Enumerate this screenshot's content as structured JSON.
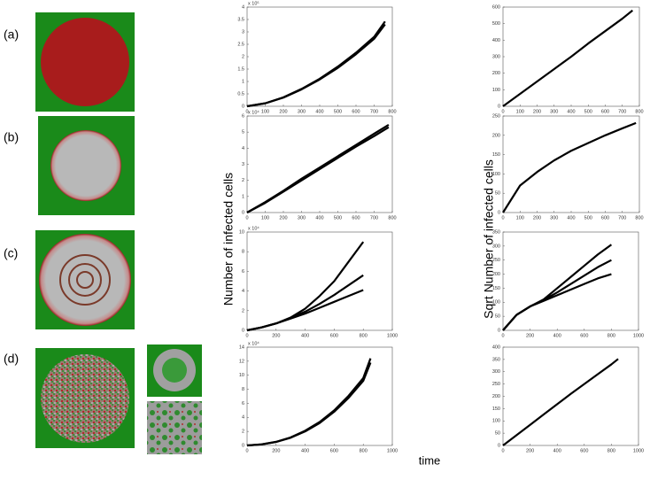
{
  "row_labels": [
    "(a)",
    "(b)",
    "(c)",
    "(d)"
  ],
  "y_label_left": "Number of infected cells",
  "y_label_right": "Sqrt Number of infected cells",
  "x_label": "time",
  "chart_data": [
    {
      "type": "line",
      "exponent": "x 10⁵",
      "x": [
        0,
        100,
        200,
        300,
        400,
        500,
        600,
        700,
        760
      ],
      "xlim": [
        0,
        800
      ],
      "xticks": [
        0,
        100,
        200,
        300,
        400,
        500,
        600,
        700,
        800
      ],
      "ylim": [
        0,
        4
      ],
      "yticks": [
        0,
        0.5,
        1,
        1.5,
        2,
        2.5,
        3,
        3.5,
        4
      ],
      "series": [
        {
          "color": "#000000",
          "values": [
            0,
            0.12,
            0.35,
            0.68,
            1.08,
            1.55,
            2.1,
            2.72,
            3.3
          ]
        },
        {
          "color": "#000000",
          "values": [
            0,
            0.12,
            0.36,
            0.7,
            1.11,
            1.6,
            2.16,
            2.8,
            3.42
          ]
        }
      ]
    },
    {
      "type": "line",
      "x": [
        0,
        100,
        200,
        300,
        400,
        500,
        600,
        700,
        760
      ],
      "xlim": [
        0,
        800
      ],
      "xticks": [
        0,
        100,
        200,
        300,
        400,
        500,
        600,
        700,
        800
      ],
      "ylim": [
        0,
        600
      ],
      "yticks": [
        0,
        100,
        200,
        300,
        400,
        500,
        600
      ],
      "series": [
        {
          "color": "#000000",
          "values": [
            0,
            75,
            150,
            225,
            300,
            380,
            455,
            530,
            580
          ]
        }
      ]
    },
    {
      "type": "line",
      "exponent": "x 10⁴",
      "x": [
        0,
        100,
        200,
        300,
        400,
        500,
        600,
        700,
        780
      ],
      "xlim": [
        0,
        800
      ],
      "xticks": [
        0,
        100,
        200,
        300,
        400,
        500,
        600,
        700,
        800
      ],
      "ylim": [
        0,
        6
      ],
      "yticks": [
        0,
        1,
        2,
        3,
        4,
        5,
        6
      ],
      "series": [
        {
          "color": "#000000",
          "values": [
            0,
            0.6,
            1.3,
            2.0,
            2.7,
            3.4,
            4.1,
            4.75,
            5.3
          ]
        },
        {
          "color": "#000000",
          "values": [
            0,
            0.65,
            1.35,
            2.1,
            2.8,
            3.5,
            4.2,
            4.9,
            5.45
          ]
        }
      ]
    },
    {
      "type": "line",
      "x": [
        0,
        100,
        200,
        300,
        400,
        500,
        600,
        700,
        780
      ],
      "xlim": [
        0,
        800
      ],
      "xticks": [
        0,
        100,
        200,
        300,
        400,
        500,
        600,
        700,
        800
      ],
      "ylim": [
        0,
        250
      ],
      "yticks": [
        0,
        50,
        100,
        150,
        200,
        250
      ],
      "series": [
        {
          "color": "#000000",
          "values": [
            0,
            70,
            105,
            135,
            160,
            180,
            200,
            218,
            232
          ]
        }
      ]
    },
    {
      "type": "line",
      "exponent": "x 10⁴",
      "x": [
        0,
        100,
        200,
        300,
        400,
        500,
        600,
        700,
        800
      ],
      "xlim": [
        0,
        1000
      ],
      "xticks": [
        0,
        200,
        400,
        600,
        800,
        1000
      ],
      "ylim": [
        0,
        10
      ],
      "yticks": [
        0,
        2,
        4,
        6,
        8,
        10
      ],
      "series": [
        {
          "color": "#000000",
          "values": [
            0,
            0.3,
            0.7,
            1.2,
            1.7,
            2.3,
            2.9,
            3.5,
            4.1
          ]
        },
        {
          "color": "#000000",
          "values": [
            0,
            0.3,
            0.7,
            1.25,
            1.9,
            2.7,
            3.6,
            4.6,
            5.6
          ]
        },
        {
          "color": "#000000",
          "values": [
            0,
            0.3,
            0.7,
            1.3,
            2.2,
            3.5,
            5.0,
            7.0,
            9.0
          ]
        }
      ]
    },
    {
      "type": "line",
      "x": [
        0,
        100,
        200,
        300,
        400,
        500,
        600,
        700,
        800
      ],
      "xlim": [
        0,
        1000
      ],
      "xticks": [
        0,
        200,
        400,
        600,
        800,
        1000
      ],
      "ylim": [
        0,
        350
      ],
      "yticks": [
        0,
        50,
        100,
        150,
        200,
        250,
        300,
        350
      ],
      "series": [
        {
          "color": "#000000",
          "values": [
            0,
            55,
            85,
            105,
            125,
            145,
            165,
            185,
            200
          ]
        },
        {
          "color": "#000000",
          "values": [
            0,
            55,
            85,
            108,
            135,
            165,
            195,
            225,
            250
          ]
        },
        {
          "color": "#000000",
          "values": [
            0,
            55,
            85,
            110,
            150,
            190,
            230,
            270,
            305
          ]
        }
      ]
    },
    {
      "type": "line",
      "exponent": "x 10⁴",
      "x": [
        0,
        100,
        200,
        300,
        400,
        500,
        600,
        700,
        800,
        850
      ],
      "xlim": [
        0,
        1000
      ],
      "xticks": [
        0,
        200,
        400,
        600,
        800,
        1000
      ],
      "ylim": [
        0,
        14
      ],
      "yticks": [
        0,
        2,
        4,
        6,
        8,
        10,
        12,
        14
      ],
      "series": [
        {
          "color": "#000000",
          "values": [
            0,
            0.15,
            0.5,
            1.1,
            2.0,
            3.2,
            4.8,
            6.8,
            9.2,
            11.8
          ]
        },
        {
          "color": "#000000",
          "values": [
            0,
            0.16,
            0.52,
            1.15,
            2.1,
            3.35,
            5.0,
            7.1,
            9.6,
            12.4
          ]
        }
      ]
    },
    {
      "type": "line",
      "x": [
        0,
        100,
        200,
        300,
        400,
        500,
        600,
        700,
        800,
        850
      ],
      "xlim": [
        0,
        1000
      ],
      "xticks": [
        0,
        200,
        400,
        600,
        800,
        1000
      ],
      "ylim": [
        0,
        400
      ],
      "yticks": [
        0,
        50,
        100,
        150,
        200,
        250,
        300,
        350,
        400
      ],
      "series": [
        {
          "color": "#000000",
          "values": [
            0,
            42,
            84,
            126,
            168,
            210,
            250,
            290,
            330,
            352
          ]
        }
      ]
    }
  ]
}
